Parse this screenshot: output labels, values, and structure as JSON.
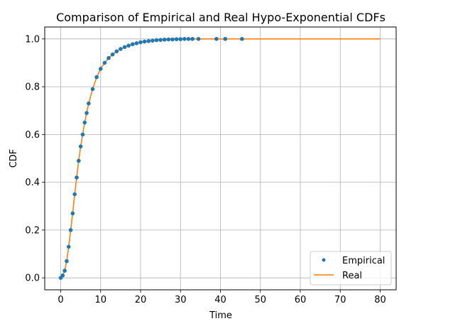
{
  "chart_data": {
    "type": "line",
    "title": "Comparison of Empirical and Real Hypo-Exponential CDFs",
    "xlabel": "Time",
    "ylabel": "CDF",
    "xlim": [
      -4,
      84
    ],
    "ylim": [
      -0.05,
      1.05
    ],
    "x_ticks": [
      0,
      10,
      20,
      30,
      40,
      50,
      60,
      70,
      80
    ],
    "y_ticks": [
      0.0,
      0.2,
      0.4,
      0.6,
      0.8,
      1.0
    ],
    "x_tick_labels": [
      "0",
      "10",
      "20",
      "30",
      "40",
      "50",
      "60",
      "70",
      "80"
    ],
    "y_tick_labels": [
      "0.0",
      "0.2",
      "0.4",
      "0.6",
      "0.8",
      "1.0"
    ],
    "grid": true,
    "legend": "bottom-right",
    "colors": {
      "empirical": "#1f77b4",
      "real": "#ff7f0e"
    },
    "series": [
      {
        "name": "Empirical",
        "style": "markers",
        "x": [
          0,
          0.5,
          1,
          1.5,
          2,
          2.5,
          3,
          3.5,
          4,
          4.5,
          5,
          5.5,
          6,
          6.5,
          7,
          8,
          9,
          10,
          11,
          12,
          13,
          14,
          15,
          16,
          17,
          18,
          19,
          20,
          21,
          22,
          23,
          24,
          25,
          26,
          27,
          28,
          29,
          30,
          31,
          32,
          33,
          34.5,
          39,
          41.2,
          45.4
        ],
        "y": [
          0.0,
          0.01,
          0.03,
          0.07,
          0.13,
          0.2,
          0.27,
          0.35,
          0.42,
          0.49,
          0.55,
          0.6,
          0.65,
          0.69,
          0.73,
          0.79,
          0.84,
          0.875,
          0.9,
          0.92,
          0.935,
          0.948,
          0.958,
          0.966,
          0.972,
          0.978,
          0.982,
          0.986,
          0.989,
          0.991,
          0.993,
          0.995,
          0.996,
          0.997,
          0.998,
          0.998,
          0.999,
          0.999,
          1.0,
          1.0,
          1.0,
          1.0,
          1.0,
          1.0,
          1.0
        ]
      },
      {
        "name": "Real",
        "style": "line",
        "x": [
          0,
          0.5,
          1,
          1.5,
          2,
          2.5,
          3,
          3.5,
          4,
          4.5,
          5,
          5.5,
          6,
          6.5,
          7,
          8,
          9,
          10,
          11,
          12,
          13,
          14,
          15,
          16,
          17,
          18,
          19,
          20,
          22,
          24,
          26,
          28,
          30,
          32,
          35,
          40,
          50,
          60,
          70,
          80
        ],
        "y": [
          0.0,
          0.01,
          0.03,
          0.07,
          0.13,
          0.2,
          0.27,
          0.35,
          0.42,
          0.49,
          0.55,
          0.6,
          0.65,
          0.69,
          0.73,
          0.79,
          0.84,
          0.875,
          0.9,
          0.92,
          0.935,
          0.948,
          0.958,
          0.966,
          0.972,
          0.978,
          0.982,
          0.986,
          0.991,
          0.995,
          0.997,
          0.998,
          0.999,
          1.0,
          1.0,
          1.0,
          1.0,
          1.0,
          1.0,
          1.0
        ]
      }
    ]
  }
}
